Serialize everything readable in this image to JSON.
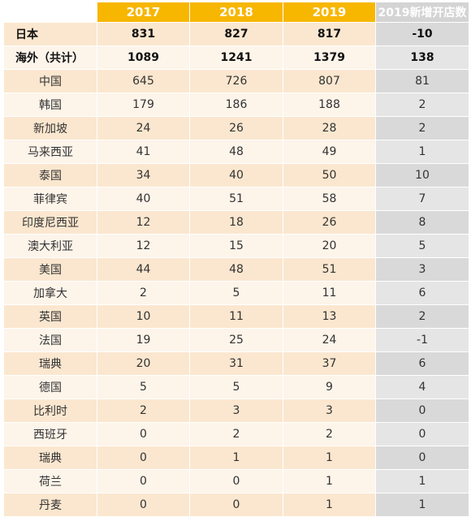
{
  "chart_data": {
    "type": "table",
    "columns": [
      "",
      "2017",
      "2018",
      "2019",
      "2019新增开店数"
    ],
    "rows": [
      {
        "name": "日本",
        "y2017": "831",
        "y2018": "827",
        "y2019": "817",
        "new2019": "-10",
        "bold": true
      },
      {
        "name": "海外（共计）",
        "y2017": "1089",
        "y2018": "1241",
        "y2019": "1379",
        "new2019": "138",
        "bold": true
      },
      {
        "name": "中国",
        "y2017": "645",
        "y2018": "726",
        "y2019": "807",
        "new2019": "81"
      },
      {
        "name": "韩国",
        "y2017": "179",
        "y2018": "186",
        "y2019": "188",
        "new2019": "2"
      },
      {
        "name": "新加坡",
        "y2017": "24",
        "y2018": "26",
        "y2019": "28",
        "new2019": "2"
      },
      {
        "name": "马来西亚",
        "y2017": "41",
        "y2018": "48",
        "y2019": "49",
        "new2019": "1"
      },
      {
        "name": "泰国",
        "y2017": "34",
        "y2018": "40",
        "y2019": "50",
        "new2019": "10"
      },
      {
        "name": "菲律宾",
        "y2017": "40",
        "y2018": "51",
        "y2019": "58",
        "new2019": "7"
      },
      {
        "name": "印度尼西亚",
        "y2017": "12",
        "y2018": "18",
        "y2019": "26",
        "new2019": "8"
      },
      {
        "name": "澳大利亚",
        "y2017": "12",
        "y2018": "15",
        "y2019": "20",
        "new2019": "5"
      },
      {
        "name": "美国",
        "y2017": "44",
        "y2018": "48",
        "y2019": "51",
        "new2019": "3"
      },
      {
        "name": "加拿大",
        "y2017": "2",
        "y2018": "5",
        "y2019": "11",
        "new2019": "6"
      },
      {
        "name": "英国",
        "y2017": "10",
        "y2018": "11",
        "y2019": "13",
        "new2019": "2"
      },
      {
        "name": "法国",
        "y2017": "19",
        "y2018": "25",
        "y2019": "24",
        "new2019": "-1"
      },
      {
        "name": "瑞典",
        "y2017": "20",
        "y2018": "31",
        "y2019": "37",
        "new2019": "6"
      },
      {
        "name": "德国",
        "y2017": "5",
        "y2018": "5",
        "y2019": "9",
        "new2019": "4"
      },
      {
        "name": "比利时",
        "y2017": "2",
        "y2018": "3",
        "y2019": "3",
        "new2019": "0"
      },
      {
        "name": "西班牙",
        "y2017": "0",
        "y2018": "2",
        "y2019": "2",
        "new2019": "0"
      },
      {
        "name": "瑞典",
        "y2017": "0",
        "y2018": "1",
        "y2019": "1",
        "new2019": "0"
      },
      {
        "name": "荷兰",
        "y2017": "0",
        "y2018": "0",
        "y2019": "1",
        "new2019": "1"
      },
      {
        "name": "丹麦",
        "y2017": "0",
        "y2018": "0",
        "y2019": "1",
        "new2019": "1"
      }
    ],
    "colors": {
      "header_year": "#f7b600",
      "header_new": "#d4d4d4",
      "row_odd": "#fbe7cf",
      "row_even": "#fdf4ea",
      "new_odd": "#d9d9d9",
      "new_even": "#e5e5e5"
    }
  }
}
